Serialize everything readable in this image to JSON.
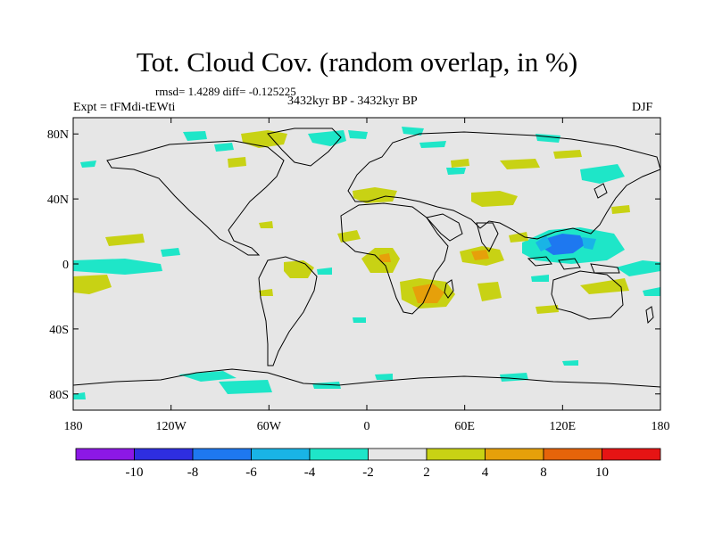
{
  "title": "Tot. Cloud Cov. (random overlap, in %)",
  "stats": "rmsd= 1.4289 diff= -0.125225",
  "experiment": "Expt = tFMdi-tEWti",
  "period": "3432kyr BP - 3432kyr BP",
  "season": "DJF",
  "map": {
    "projection": "cylindrical equidistant",
    "lon_range": [
      -180,
      180
    ],
    "lat_range": [
      -90,
      90
    ],
    "background_color": "#e6e6e6",
    "coastline_color": "#000000",
    "lat_ticks": [
      {
        "value": 80,
        "label": "80N"
      },
      {
        "value": 40,
        "label": "40N"
      },
      {
        "value": 0,
        "label": "0"
      },
      {
        "value": -40,
        "label": "40S"
      },
      {
        "value": -80,
        "label": "80S"
      }
    ],
    "lon_ticks": [
      {
        "value": -180,
        "label": "180"
      },
      {
        "value": -120,
        "label": "120W"
      },
      {
        "value": -60,
        "label": "60W"
      },
      {
        "value": 0,
        "label": "0"
      },
      {
        "value": 60,
        "label": "60E"
      },
      {
        "value": 120,
        "label": "120E"
      },
      {
        "value": 180,
        "label": "180"
      }
    ]
  },
  "colorbar": {
    "colors": [
      "#8c18e6",
      "#2e2ee0",
      "#1e78f0",
      "#19b4e6",
      "#1ee6c8",
      "#e6e6e6",
      "#c8d214",
      "#e6a00a",
      "#e6640a",
      "#e61414"
    ],
    "boundaries": [
      -10,
      -8,
      -6,
      -4,
      -2,
      2,
      4,
      8,
      10
    ],
    "labels": [
      "-10",
      "-8",
      "-6",
      "-4",
      "-2",
      "2",
      "4",
      "8",
      "10"
    ]
  }
}
